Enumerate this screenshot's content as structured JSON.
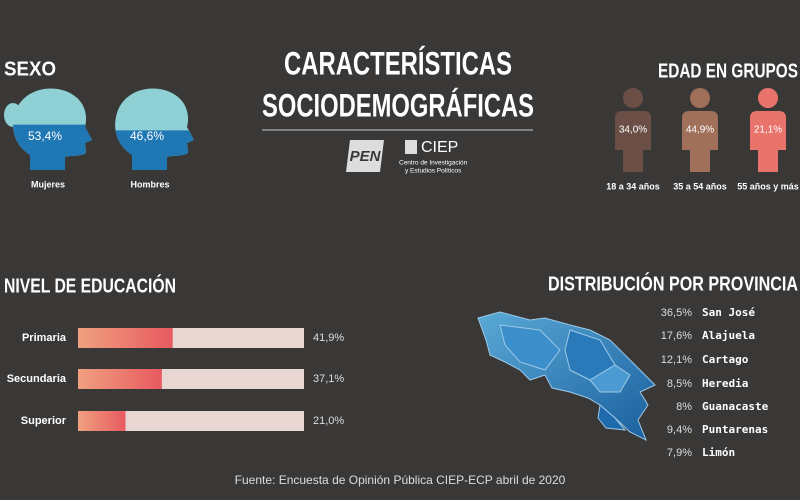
{
  "title_lines": [
    "CARACTERÍSTICAS",
    "SOCIODEMOGRÁFICAS"
  ],
  "logos": {
    "pen": "PEN",
    "ciep": "CIEP",
    "ciep_sub": [
      "Centro de Investigación",
      "y Estudios Políticos"
    ]
  },
  "age": {
    "title": "EDAD EN GRUPOS",
    "groups": [
      {
        "label": "34,0%",
        "name": "18 a 34  años"
      },
      {
        "label": "44,9%",
        "name": "35 a 54 años"
      },
      {
        "label": "21,1%",
        "name": "55 años y más"
      }
    ]
  },
  "provinces": {
    "title": "DISTRIBUCIÓN POR PROVINCIA",
    "items": [
      {
        "label": "36,5%",
        "name": "San José"
      },
      {
        "label": "17,6%",
        "name": "Alajuela"
      },
      {
        "label": "12,1%",
        "name": "Cartago"
      },
      {
        "label": "8,5%",
        "name": "Heredia"
      },
      {
        "label": "8%",
        "name": "Guanacaste"
      },
      {
        "label": "9,4%",
        "name": "Puntarenas"
      },
      {
        "label": "7,9%",
        "name": "Limón"
      }
    ]
  },
  "source": "Fuente: Encuesta de Opinión Pública CIEP-ECP abril de 2020",
  "chart_data": [
    {
      "type": "head",
      "title": "SEXO",
      "categories": [
        "Mujeres",
        "Hombres"
      ],
      "values": [
        53.4,
        46.6
      ],
      "value_labels": [
        "53,4%",
        "46,6%"
      ],
      "ylim": [
        0,
        100
      ],
      "color": "#1f78b4"
    },
    {
      "type": "bar",
      "title": "NIVEL DE EDUCACIÓN",
      "categories": [
        "Primaria",
        "Secundaria",
        "Superior"
      ],
      "values": [
        41.9,
        37.1,
        21.0
      ],
      "value_labels": [
        "41,9%",
        "37,1%",
        "21,0%"
      ],
      "xlim": [
        0,
        100
      ],
      "color": "#e85a60"
    }
  ]
}
